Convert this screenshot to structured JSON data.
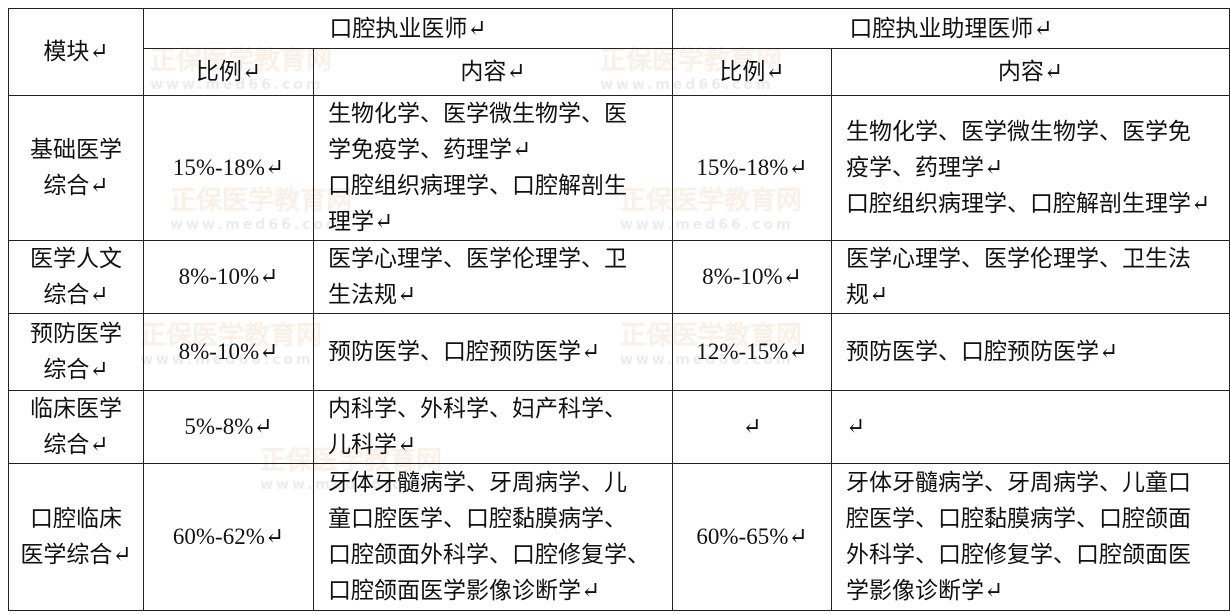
{
  "watermark": {
    "brand": "正保医学教育网",
    "url": "www.med66.com"
  },
  "header": {
    "module": "模块↵",
    "group_practitioner": "口腔执业医师↵",
    "group_assistant": "口腔执业助理医师↵",
    "ratio": "比例↵",
    "content": "内容↵"
  },
  "rows": [
    {
      "module": [
        "基础医学",
        "综合↵"
      ],
      "p_ratio": "15%-18%↵",
      "p_content": [
        "生物化学、医学微生物学、医",
        "学免疫学、药理学↵",
        "口腔组织病理学、口腔解剖生",
        "理学↵"
      ],
      "a_ratio": "15%-18%↵",
      "a_content": [
        "生物化学、医学微生物学、医学免",
        "疫学、药理学↵",
        "口腔组织病理学、口腔解剖生理学↵"
      ]
    },
    {
      "module": [
        "医学人文",
        "综合↵"
      ],
      "p_ratio": "8%-10%↵",
      "p_content": [
        "医学心理学、医学伦理学、卫",
        "生法规↵"
      ],
      "a_ratio": "8%-10%↵",
      "a_content": [
        "医学心理学、医学伦理学、卫生法",
        "规↵"
      ]
    },
    {
      "module": [
        "预防医学",
        "综合↵"
      ],
      "p_ratio": "8%-10%↵",
      "p_content": [
        "预防医学、口腔预防医学↵"
      ],
      "a_ratio": "12%-15%↵",
      "a_content": [
        "预防医学、口腔预防医学↵"
      ]
    },
    {
      "module": [
        "临床医学",
        "综合↵"
      ],
      "p_ratio": "5%-8%↵",
      "p_content": [
        "内科学、外科学、妇产科学、",
        "儿科学↵"
      ],
      "a_ratio": "↵",
      "a_content": [
        "↵"
      ]
    },
    {
      "module": [
        "口腔临床",
        "医学综合↵"
      ],
      "p_ratio": "60%-62%↵",
      "p_content": [
        "牙体牙髓病学、牙周病学、儿",
        "童口腔医学、口腔黏膜病学、",
        "口腔颌面外科学、口腔修复学、",
        "口腔颌面医学影像诊断学↵"
      ],
      "a_ratio": "60%-65%↵",
      "a_content": [
        "牙体牙髓病学、牙周病学、儿童口",
        "腔医学、口腔黏膜病学、口腔颌面",
        "外科学、口腔修复学、口腔颌面医",
        "学影像诊断学↵"
      ]
    }
  ]
}
